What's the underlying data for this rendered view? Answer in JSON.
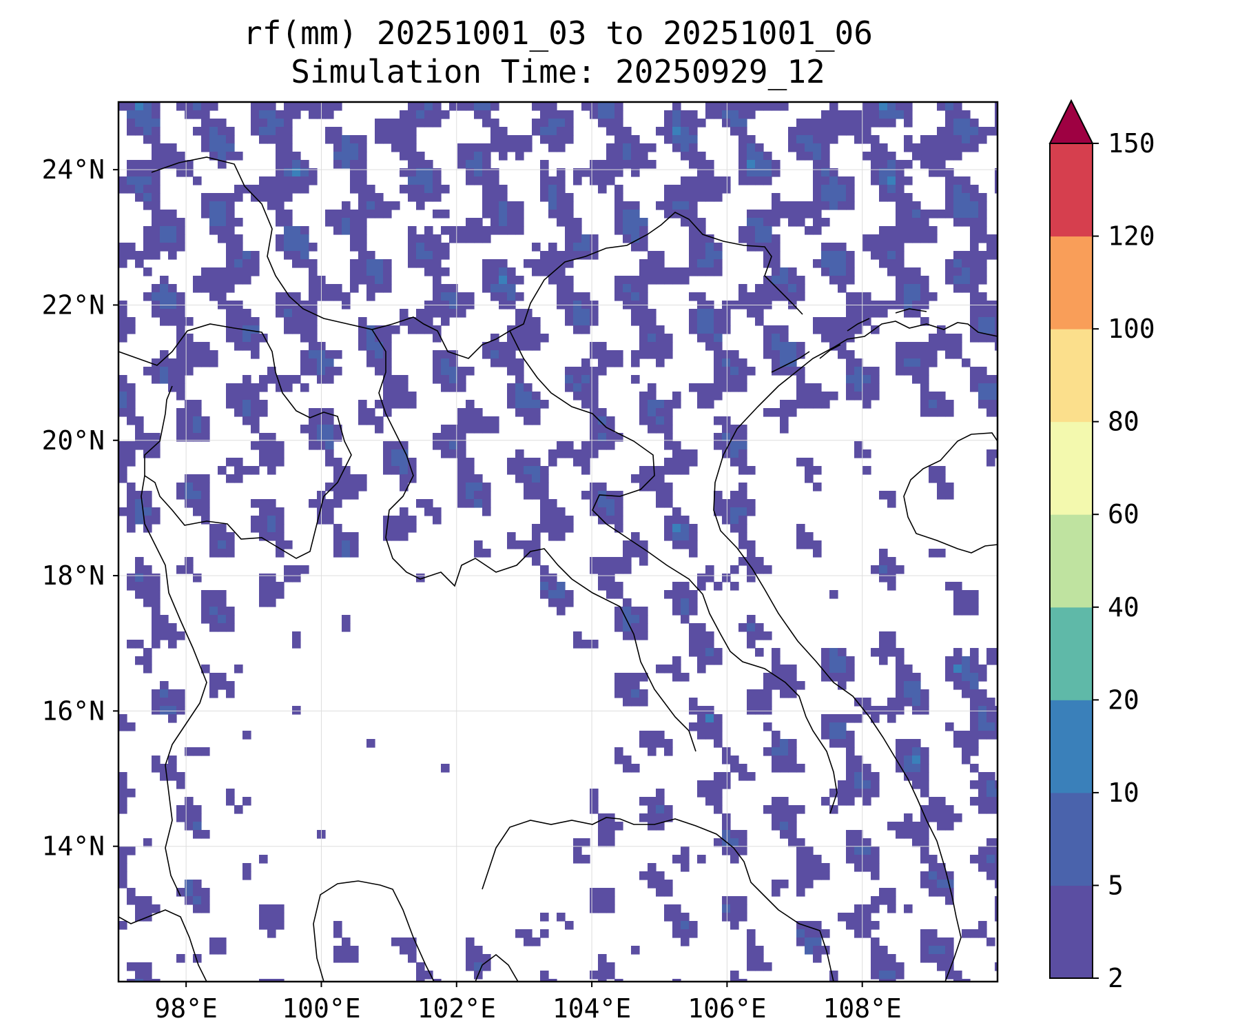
{
  "title": {
    "line1": "rf(mm) 20251001_03 to 20251001_06",
    "line2": "Simulation Time: 20250929_12"
  },
  "map": {
    "lon_range": [
      97,
      110
    ],
    "lat_range": [
      12,
      25
    ],
    "xticks": [
      {
        "value": 98,
        "label": "98°E"
      },
      {
        "value": 100,
        "label": "100°E"
      },
      {
        "value": 102,
        "label": "102°E"
      },
      {
        "value": 104,
        "label": "104°E"
      },
      {
        "value": 106,
        "label": "106°E"
      },
      {
        "value": 108,
        "label": "108°E"
      }
    ],
    "yticks": [
      {
        "value": 14,
        "label": "14°N"
      },
      {
        "value": 16,
        "label": "16°N"
      },
      {
        "value": 18,
        "label": "18°N"
      },
      {
        "value": 20,
        "label": "20°N"
      },
      {
        "value": 22,
        "label": "22°N"
      },
      {
        "value": 24,
        "label": "24°N"
      }
    ],
    "gridlines": true
  },
  "colorbar": {
    "levels": [
      "2",
      "5",
      "10",
      "20",
      "40",
      "60",
      "80",
      "100",
      "120",
      "150"
    ],
    "colors": [
      "#5b4ea2",
      "#4a63ac",
      "#3a80ba",
      "#5fb9a8",
      "#bfe3a0",
      "#f3f9ae",
      "#fbdf8c",
      "#f99e59",
      "#d63f4e",
      "#9e0142"
    ],
    "extend": "max"
  }
}
